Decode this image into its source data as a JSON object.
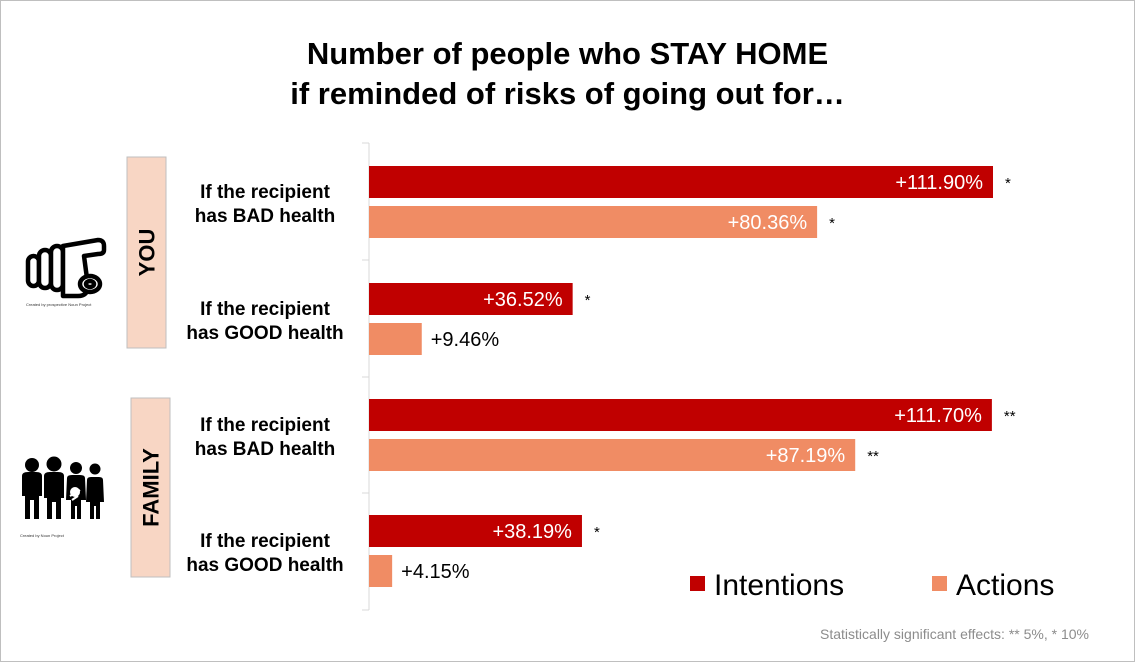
{
  "title_line1": "Number of people who STAY HOME",
  "title_line2": "if reminded of risks of going out for…",
  "footnote": "Statistically significant effects: ** 5%, * 10%",
  "groups": [
    {
      "label": "YOU",
      "icon": "pointing-hand-icon",
      "icon_credit": "Created by prospective Noun Project"
    },
    {
      "label": "FAMILY",
      "icon": "family-icon",
      "icon_credit": "Created by Noun Project"
    }
  ],
  "legend": [
    {
      "label": "Intentions",
      "color": "#c00000"
    },
    {
      "label": "Actions",
      "color": "#f08c64"
    }
  ],
  "chart_data": {
    "type": "bar",
    "orientation": "horizontal",
    "title": "Number of people who STAY HOME if reminded of risks of going out for…",
    "categories": [
      {
        "group": "YOU",
        "line1": "If the recipient",
        "line2": "has BAD health"
      },
      {
        "group": "YOU",
        "line1": "If the recipient",
        "line2": "has GOOD health"
      },
      {
        "group": "FAMILY",
        "line1": "If the recipient",
        "line2": "has BAD health"
      },
      {
        "group": "FAMILY",
        "line1": "If the recipient",
        "line2": "has GOOD health"
      }
    ],
    "series": [
      {
        "name": "Intentions",
        "color": "#c00000",
        "values": [
          111.9,
          36.52,
          111.7,
          38.19
        ],
        "labels": [
          "+111.90%",
          "+36.52%",
          "+111.70%",
          "+38.19%"
        ],
        "significance": [
          "*",
          "*",
          "**",
          "*"
        ],
        "label_inside": [
          true,
          true,
          true,
          true
        ]
      },
      {
        "name": "Actions",
        "color": "#f08c64",
        "values": [
          80.36,
          9.46,
          87.19,
          4.15
        ],
        "labels": [
          "+80.36%",
          "+9.46%",
          "+87.19%",
          "+4.15%"
        ],
        "significance": [
          "*",
          "",
          "**",
          ""
        ],
        "label_inside": [
          true,
          false,
          true,
          false
        ]
      }
    ],
    "xlim": [
      0,
      120
    ],
    "legend_position": "bottom-right",
    "grid": false
  }
}
